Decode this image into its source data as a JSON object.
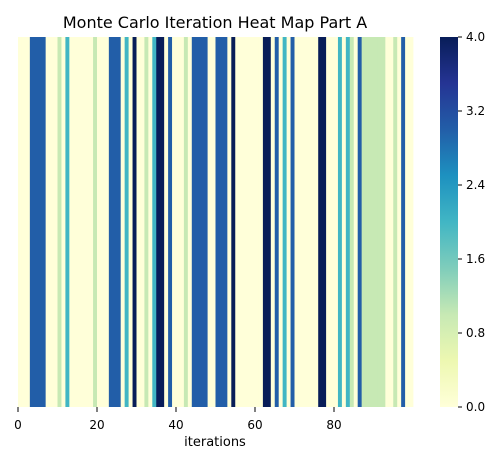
{
  "chart_data": {
    "type": "heatmap",
    "title": "Monte Carlo Iteration Heat Map Part A",
    "xlabel": "iterations",
    "ylabel": "",
    "x_range": [
      0,
      100
    ],
    "x_ticks": [
      "0",
      "20",
      "40",
      "60",
      "80"
    ],
    "x_tick_values": [
      0,
      20,
      40,
      60,
      80
    ],
    "values": [
      0,
      0,
      0,
      3,
      3,
      3,
      3,
      0,
      0,
      0,
      1,
      0,
      2,
      0,
      0,
      0,
      0,
      0,
      0,
      1,
      0,
      0,
      0,
      3,
      3,
      3,
      0,
      2,
      0,
      4,
      0,
      0,
      1,
      0,
      2,
      4,
      4,
      0,
      3,
      0,
      0,
      0,
      1,
      0,
      3,
      3,
      3,
      3,
      0,
      0,
      3,
      3,
      3,
      0,
      4,
      0,
      0,
      0,
      0,
      0,
      0,
      0,
      4,
      4,
      0,
      3,
      0,
      2,
      0,
      3,
      0,
      0,
      0,
      0,
      0,
      0,
      4,
      4,
      0,
      0,
      0,
      2,
      0,
      2,
      1,
      0,
      3,
      1,
      1,
      1,
      1,
      1,
      1,
      0,
      0,
      1,
      0,
      3,
      0,
      0
    ],
    "colorbar": {
      "min": 0.0,
      "max": 4.0,
      "ticks": [
        "0.0",
        "0.8",
        "1.6",
        "2.4",
        "3.2",
        "4.0"
      ],
      "tick_values": [
        0.0,
        0.8,
        1.6,
        2.4,
        3.2,
        4.0
      ],
      "colormap_stops": [
        "#ffffd9",
        "#edf8b1",
        "#c7e9b4",
        "#7fcdbb",
        "#41b6c4",
        "#1d91c0",
        "#225ea8",
        "#253494",
        "#081d58"
      ]
    },
    "grid": false,
    "legend": "colorbar-right"
  }
}
